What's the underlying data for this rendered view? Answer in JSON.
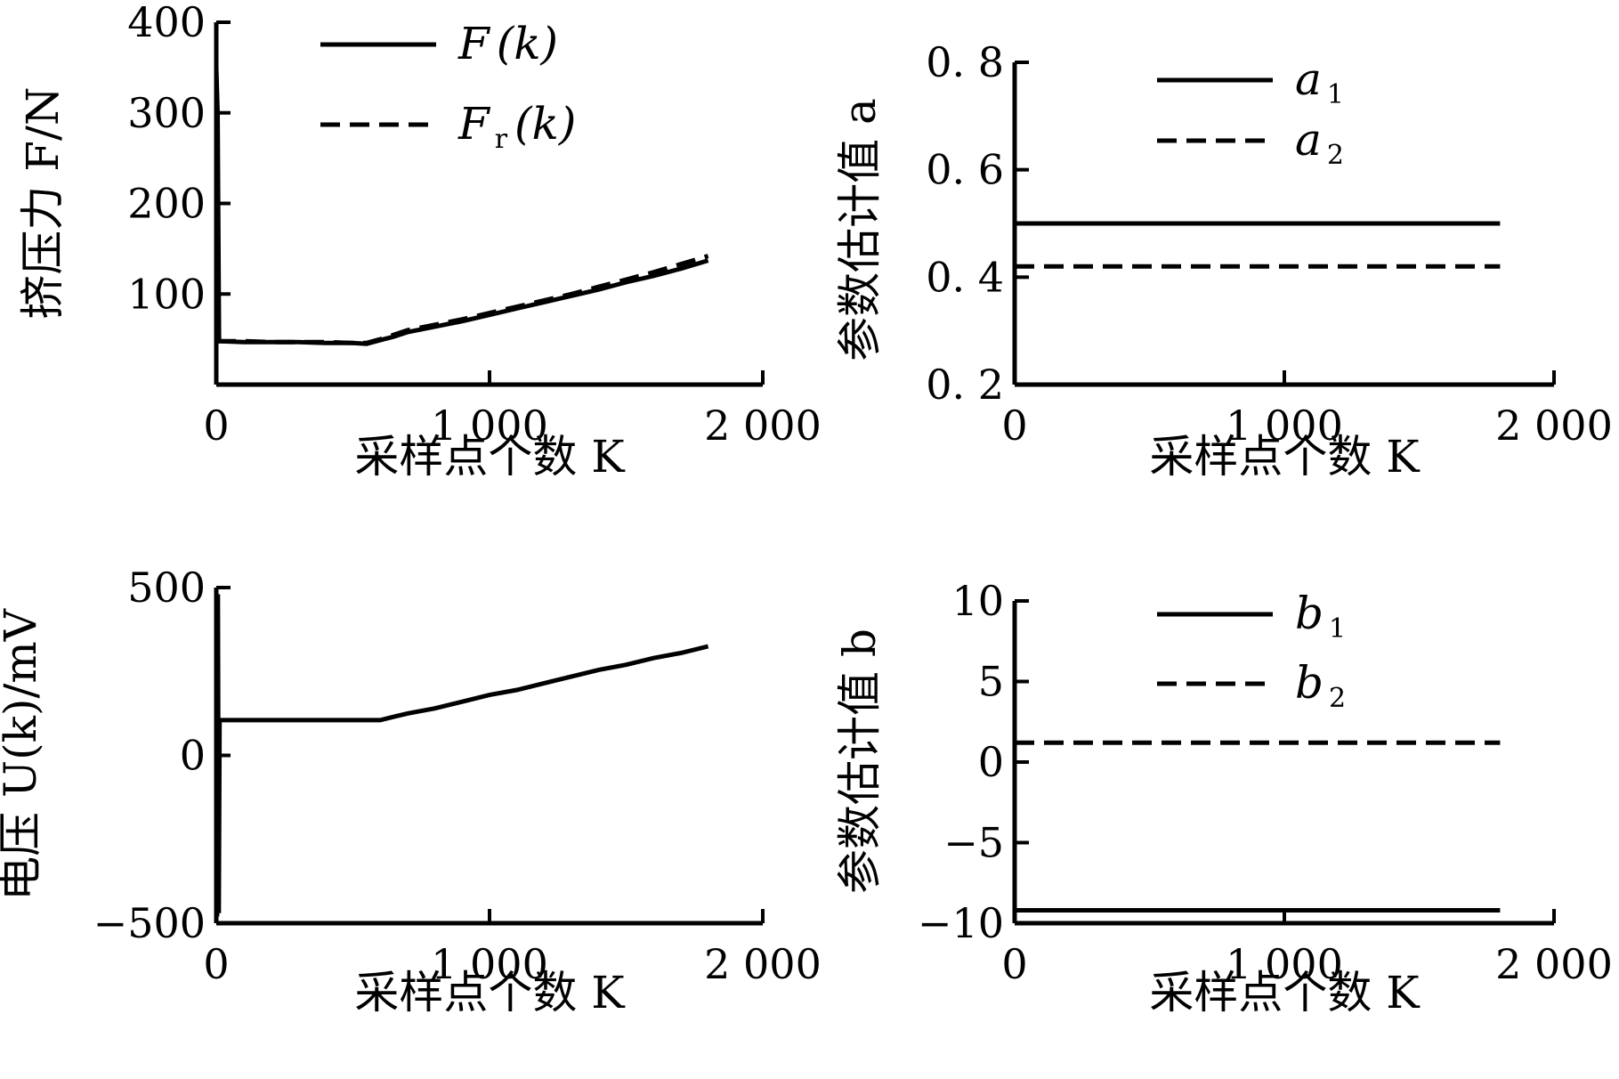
{
  "chart_data": [
    {
      "type": "line",
      "xlabel": "采样点个数 K",
      "ylabel": "挤压力 F/N",
      "xlim": [
        0,
        2000
      ],
      "ylim": [
        0,
        400
      ],
      "xticks": [
        0,
        1000,
        2000
      ],
      "xtick_labels": [
        "0",
        "1 000",
        "2 000"
      ],
      "yticks": [
        100,
        200,
        300,
        400
      ],
      "ytick_labels": [
        "100",
        "200",
        "300",
        "400"
      ],
      "legend_position": "top-center",
      "grid": false,
      "series": [
        {
          "name": "F(k)",
          "legend_main": "F",
          "legend_sub": "",
          "legend_tail": "(k)",
          "style": "solid",
          "x": [
            0,
            5,
            10,
            100,
            200,
            300,
            400,
            500,
            550,
            600,
            650,
            700,
            800,
            900,
            1000,
            1100,
            1200,
            1300,
            1400,
            1500,
            1600,
            1700,
            1800
          ],
          "y": [
            350,
            300,
            48,
            47,
            47,
            47,
            46,
            46,
            45,
            49,
            53,
            58,
            64,
            70,
            77,
            84,
            91,
            98,
            105,
            113,
            120,
            128,
            137
          ]
        },
        {
          "name": "Fr(k)",
          "legend_main": "F",
          "legend_sub": "r",
          "legend_tail": "(k)",
          "style": "dashed",
          "x": [
            0,
            100,
            200,
            300,
            400,
            500,
            550,
            600,
            650,
            700,
            800,
            900,
            1000,
            1100,
            1200,
            1300,
            1400,
            1500,
            1600,
            1700,
            1800
          ],
          "y": [
            48,
            48,
            47,
            47,
            47,
            46,
            46,
            50,
            55,
            60,
            66,
            72,
            79,
            86,
            93,
            100,
            108,
            116,
            124,
            133,
            142
          ]
        }
      ]
    },
    {
      "type": "line",
      "xlabel": "采样点个数 K",
      "ylabel": "参数估计值 a",
      "xlim": [
        0,
        2000
      ],
      "ylim": [
        0.2,
        0.8
      ],
      "xticks": [
        0,
        1000,
        2000
      ],
      "xtick_labels": [
        "0",
        "1 000",
        "2 000"
      ],
      "yticks": [
        0.2,
        0.4,
        0.6,
        0.8
      ],
      "ytick_labels": [
        "0. 2",
        "0. 4",
        "0. 6",
        "0. 8"
      ],
      "legend_position": "top-center",
      "grid": false,
      "series": [
        {
          "name": "a1",
          "legend_main": "a",
          "legend_sub": "1",
          "legend_tail": "",
          "style": "solid",
          "x": [
            0,
            1800
          ],
          "y": [
            0.5,
            0.5
          ]
        },
        {
          "name": "a2",
          "legend_main": "a",
          "legend_sub": "2",
          "legend_tail": "",
          "style": "dashed",
          "x": [
            0,
            1800
          ],
          "y": [
            0.42,
            0.42
          ]
        }
      ]
    },
    {
      "type": "line",
      "xlabel": "采样点个数 K",
      "ylabel": "电压 U(k)/mV",
      "xlim": [
        0,
        2000
      ],
      "ylim": [
        -500,
        500
      ],
      "xticks": [
        0,
        1000,
        2000
      ],
      "xtick_labels": [
        "0",
        "1 000",
        "2 000"
      ],
      "yticks": [
        -500,
        0,
        500
      ],
      "ytick_labels": [
        "−500",
        "0",
        "500"
      ],
      "legend_position": "none",
      "grid": false,
      "series": [
        {
          "name": "",
          "legend_main": "",
          "legend_sub": "",
          "legend_tail": "",
          "style": "solid",
          "x": [
            0,
            3,
            6,
            9,
            12,
            100,
            300,
            500,
            600,
            650,
            700,
            800,
            900,
            1000,
            1100,
            1200,
            1300,
            1400,
            1500,
            1600,
            1700,
            1800
          ],
          "y": [
            490,
            -480,
            480,
            -470,
            105,
            105,
            105,
            105,
            105,
            115,
            125,
            140,
            160,
            180,
            195,
            215,
            235,
            255,
            270,
            290,
            305,
            325
          ]
        }
      ]
    },
    {
      "type": "line",
      "xlabel": "采样点个数 K",
      "ylabel": "参数估计值 b",
      "xlim": [
        0,
        2000
      ],
      "ylim": [
        -10,
        10
      ],
      "xticks": [
        0,
        1000,
        2000
      ],
      "xtick_labels": [
        "0",
        "1 000",
        "2 000"
      ],
      "yticks": [
        -10,
        -5,
        0,
        5,
        10
      ],
      "ytick_labels": [
        "−10",
        "−5",
        "0",
        "5",
        "10"
      ],
      "legend_position": "top-center",
      "grid": false,
      "series": [
        {
          "name": "b1",
          "legend_main": "b",
          "legend_sub": "1",
          "legend_tail": "",
          "style": "solid",
          "x": [
            0,
            1800
          ],
          "y": [
            -9.2,
            -9.2
          ]
        },
        {
          "name": "b2",
          "legend_main": "b",
          "legend_sub": "2",
          "legend_tail": "",
          "style": "dashed",
          "x": [
            0,
            1800
          ],
          "y": [
            1.2,
            1.2
          ]
        }
      ]
    }
  ]
}
